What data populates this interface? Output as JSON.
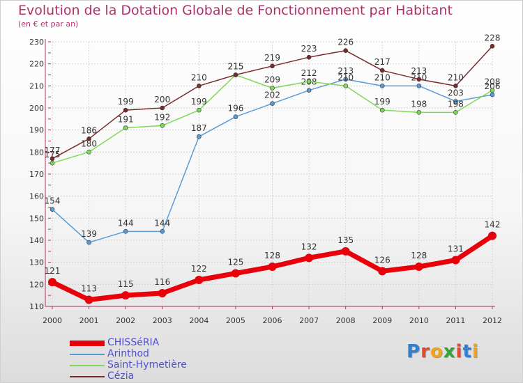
{
  "page": {
    "title": "Evolution de la Dotation Globale de Fonctionnement par Habitant",
    "subtitle": "(en € et par an)"
  },
  "logo": {
    "letters": [
      "P",
      "r",
      "o",
      "x",
      "i",
      "t",
      "i"
    ],
    "colors": [
      "#2e7fd0",
      "#e24a2b",
      "#f2a21b",
      "#34a535",
      "#e24a2b",
      "#2e7fd0",
      "#f2a21b"
    ]
  },
  "chart_data": {
    "type": "line",
    "title": "Evolution de la Dotation Globale de Fonctionnement par Habitant",
    "subtitle": "(en € et par an)",
    "xlabel": "",
    "ylabel": "",
    "x": [
      2000,
      2001,
      2002,
      2003,
      2004,
      2005,
      2006,
      2007,
      2008,
      2009,
      2010,
      2011,
      2012
    ],
    "ylim": [
      110,
      230
    ],
    "yticks": [
      110,
      120,
      130,
      140,
      150,
      160,
      170,
      180,
      190,
      200,
      210,
      220,
      230
    ],
    "grid": true,
    "legend_position": "bottom-left",
    "series": [
      {
        "name": "CHISSéRIA",
        "color": "#e8000b",
        "bold": true,
        "values": [
          121,
          113,
          115,
          116,
          122,
          125,
          128,
          132,
          135,
          126,
          128,
          131,
          142
        ]
      },
      {
        "name": "Arinthod",
        "color": "#5b9bd5",
        "bold": false,
        "values": [
          154,
          139,
          144,
          144,
          187,
          196,
          202,
          208,
          213,
          210,
          210,
          203,
          206
        ]
      },
      {
        "name": "Saint-Hymetière",
        "color": "#7ed957",
        "bold": false,
        "values": [
          175,
          180,
          191,
          192,
          199,
          215,
          209,
          212,
          210,
          199,
          198,
          198,
          208
        ]
      },
      {
        "name": "Cézia",
        "color": "#7b2b2b",
        "bold": false,
        "values": [
          177,
          186,
          199,
          200,
          210,
          215,
          219,
          223,
          226,
          217,
          213,
          210,
          228
        ]
      }
    ]
  }
}
